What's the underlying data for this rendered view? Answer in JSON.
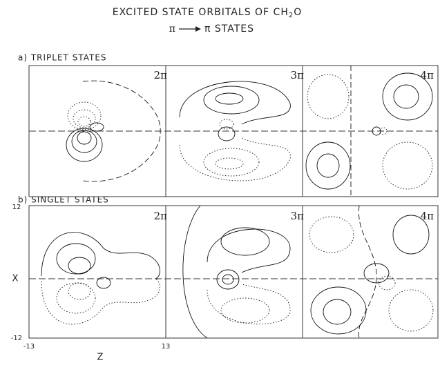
{
  "figure": {
    "title": {
      "main": "EXCITED STATE ORBITALS OF CH",
      "subscript": "2",
      "end": "O"
    },
    "subtitle": {
      "from": "π",
      "to": "π STATES"
    },
    "rows": [
      {
        "label": "a) TRIPLET STATES",
        "panels": [
          "2π",
          "3π",
          "4π"
        ]
      },
      {
        "label": "b) SINGLET STATES",
        "panels": [
          "2π",
          "3π",
          "4π"
        ]
      }
    ],
    "axes": {
      "y_top": "12",
      "y_label": "X",
      "y_bottom": "-12",
      "x_left": "-13",
      "x_label": "Z",
      "x_right": "13"
    }
  }
}
